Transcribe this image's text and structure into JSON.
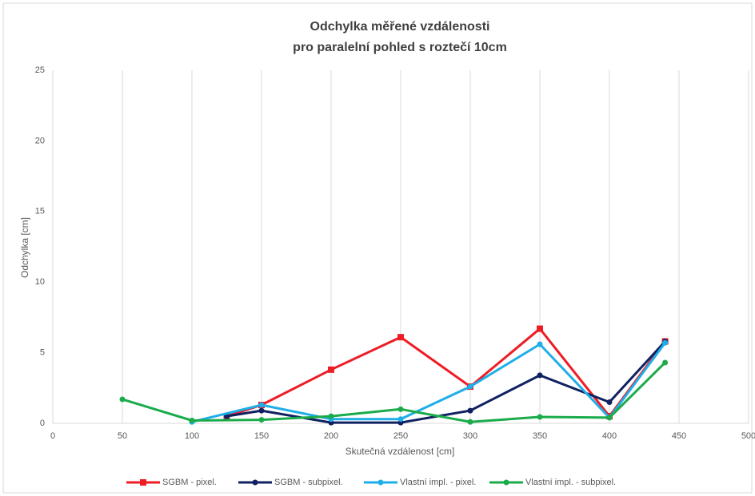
{
  "chart_data": {
    "type": "line",
    "title": [
      "Odchylka měřené vzdálenosti",
      "pro paralelní pohled s roztečí 10cm"
    ],
    "x_label": "Skutečná vzdálenost [cm]",
    "y_label": "Odchylka [cm]",
    "xlim": [
      0,
      500
    ],
    "xticks": [
      0,
      50,
      100,
      150,
      200,
      250,
      300,
      350,
      400,
      450,
      500
    ],
    "ylim": [
      0,
      25
    ],
    "yticks": [
      0,
      5,
      10,
      15,
      20,
      25
    ],
    "grid": "x",
    "legend": "bottom",
    "series": [
      {
        "name": "SGBM - pixel.",
        "color": "#ee1c25",
        "marker": "square",
        "x": [
          125,
          150,
          200,
          250,
          300,
          350,
          400,
          440
        ],
        "values": [
          0.5,
          1.3,
          3.8,
          6.1,
          2.6,
          6.7,
          0.5,
          5.8
        ]
      },
      {
        "name": "SGBM - subpixel.",
        "color": "#0f2160",
        "marker": "circle",
        "x": [
          125,
          150,
          200,
          250,
          300,
          350,
          400,
          440
        ],
        "values": [
          0.5,
          0.9,
          0.05,
          0.05,
          0.9,
          3.4,
          1.5,
          5.8
        ]
      },
      {
        "name": "Vlastní impl. - pixel.",
        "color": "#1eaee8",
        "marker": "circle",
        "x": [
          100,
          150,
          200,
          250,
          300,
          350,
          400,
          440
        ],
        "values": [
          0.1,
          1.3,
          0.3,
          0.3,
          2.6,
          5.6,
          0.4,
          5.7
        ]
      },
      {
        "name": "Vlastní impl. - subpixel.",
        "color": "#1aab4b",
        "marker": "circle",
        "x": [
          50,
          100,
          150,
          200,
          250,
          300,
          350,
          400,
          440
        ],
        "values": [
          1.7,
          0.2,
          0.25,
          0.5,
          1.0,
          0.1,
          0.45,
          0.4,
          4.3
        ]
      }
    ]
  }
}
